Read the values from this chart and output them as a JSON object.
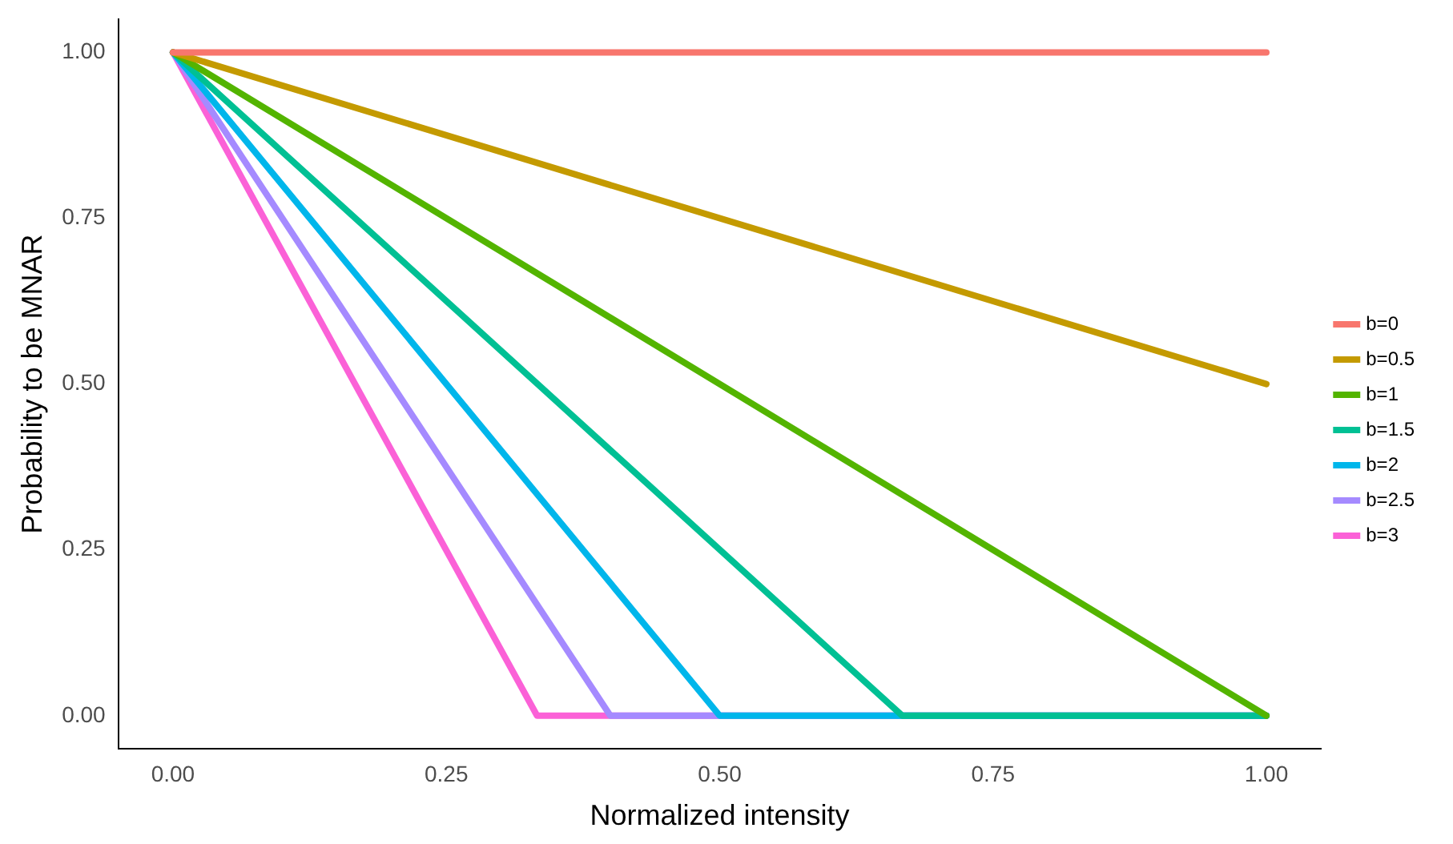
{
  "chart_data": {
    "type": "line",
    "xlabel": "Normalized intensity",
    "ylabel": "Probability to be MNAR",
    "xlim": [
      -0.05,
      1.05
    ],
    "xticks": [
      {
        "value": 0,
        "label": "0.00"
      },
      0.25,
      {
        "value": 0.5,
        "label": "0.50"
      },
      0.75,
      {
        "value": 1,
        "label": "1.00"
      }
    ],
    "ylim": [
      -0.05,
      1.05
    ],
    "yticks": [
      {
        "value": 0,
        "label": "0.00"
      },
      0.25,
      {
        "value": 0.5,
        "label": "0.50"
      },
      0.75,
      {
        "value": 1,
        "label": "1.00"
      }
    ],
    "grid": false,
    "legend": "right",
    "marker": "none",
    "line_style": "solid",
    "series": [
      {
        "name": "b=0",
        "color": "#f8766d",
        "x": [
          0,
          1
        ],
        "values": [
          1,
          1
        ]
      },
      {
        "name": "b=0.5",
        "color": "#c49a00",
        "x": [
          0,
          1
        ],
        "values": [
          1,
          0.5
        ]
      },
      {
        "name": "b=1",
        "color": "#53b400",
        "x": [
          0,
          1
        ],
        "values": [
          1,
          0
        ]
      },
      {
        "name": "b=1.5",
        "color": "#00c094",
        "x": [
          0,
          0.667,
          1
        ],
        "values": [
          1,
          0,
          0
        ]
      },
      {
        "name": "b=2",
        "color": "#00b6eb",
        "x": [
          0,
          0.5,
          1
        ],
        "values": [
          1,
          0,
          0
        ]
      },
      {
        "name": "b=2.5",
        "color": "#a58aff",
        "x": [
          0,
          0.4,
          1
        ],
        "values": [
          1,
          0,
          0
        ]
      },
      {
        "name": "b=3",
        "color": "#fb61d7",
        "x": [
          0,
          0.333,
          1
        ],
        "values": [
          1,
          0,
          0
        ]
      }
    ]
  }
}
